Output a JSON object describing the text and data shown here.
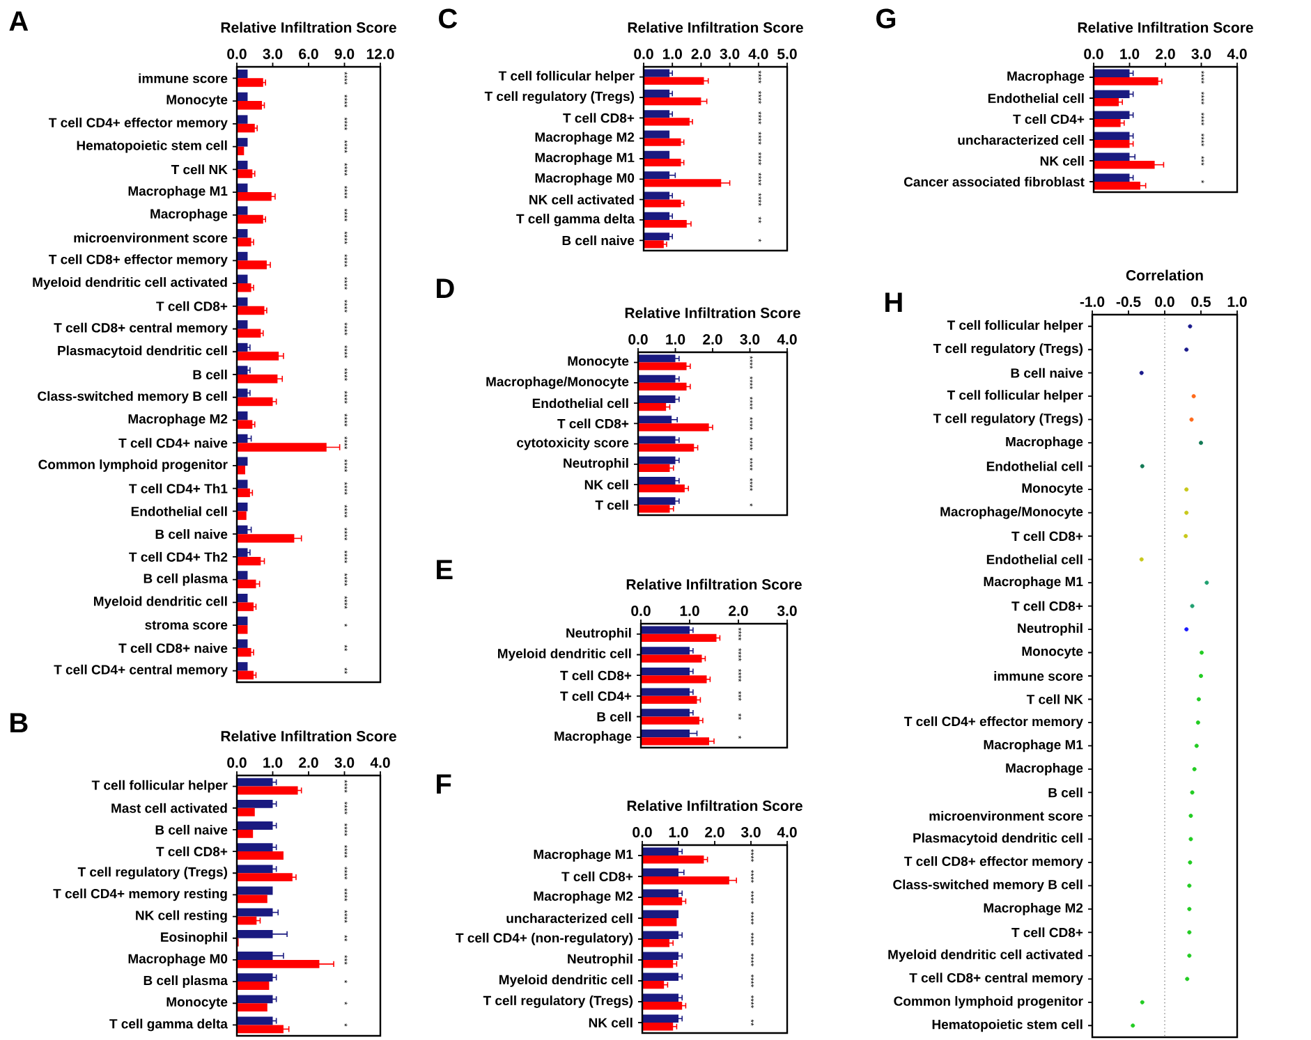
{
  "chart_data": [
    {
      "type": "bar",
      "orientation": "horizontal",
      "title": "Relative Infiltration Score",
      "categories": [
        "immune score",
        "Monocyte",
        "T cell CD4+ effector memory",
        "Hematopoietic stem cell",
        "T cell NK",
        "Macrophage M1",
        "Macrophage",
        "microenvironment score",
        "T cell CD8+ effector memory",
        "Myeloid dendritic cell activated",
        "T cell CD8+",
        "T cell CD8+ central memory",
        "Plasmacytoid dendritic cell",
        "B cell",
        "Class-switched memory B cell",
        "Macrophage M2",
        "T cell CD4+ naive",
        "Common lymphoid progenitor",
        "T cell CD4+ Th1",
        "Endothelial cell",
        "B cell naive",
        "T cell CD4+ Th2",
        "B cell plasma",
        "Myeloid dendritic cell",
        "stroma score",
        "T cell CD8+ naive",
        "T cell CD4+ central memory"
      ],
      "series": [
        {
          "color": "#1a1a80",
          "values": [
            0.9,
            0.9,
            0.9,
            0.9,
            0.9,
            0.9,
            0.9,
            0.9,
            0.9,
            0.9,
            0.9,
            0.9,
            0.9,
            0.9,
            0.9,
            0.9,
            0.9,
            0.9,
            0.9,
            0.9,
            0.9,
            0.9,
            0.9,
            0.9,
            0.9,
            0.9,
            0.9
          ],
          "errors": [
            null,
            null,
            null,
            null,
            null,
            null,
            null,
            null,
            null,
            null,
            null,
            null,
            0.2,
            0.2,
            0.2,
            null,
            0.3,
            null,
            null,
            null,
            0.3,
            0.2,
            null,
            null,
            null,
            null,
            null
          ]
        },
        {
          "color": "#ff0000",
          "values": [
            2.2,
            2.1,
            1.5,
            0.6,
            1.3,
            2.9,
            2.2,
            1.2,
            2.5,
            1.2,
            2.3,
            2.0,
            3.5,
            3.4,
            3.0,
            1.3,
            7.5,
            0.7,
            1.1,
            0.8,
            4.8,
            2.0,
            1.6,
            1.4,
            0.9,
            1.2,
            1.4
          ],
          "errors": [
            0.2,
            0.2,
            0.2,
            null,
            0.2,
            0.3,
            0.2,
            0.2,
            0.3,
            0.2,
            0.2,
            0.2,
            0.4,
            0.4,
            0.3,
            0.2,
            1.1,
            null,
            0.2,
            null,
            0.6,
            0.3,
            0.3,
            0.2,
            null,
            0.2,
            0.2
          ]
        }
      ],
      "xlim": [
        0,
        12
      ],
      "xticks": [
        {
          "value": 0,
          "label": "0.0"
        },
        {
          "value": 3,
          "label": "3.0"
        },
        {
          "value": 6,
          "label": "6.0"
        },
        {
          "value": 9,
          "label": "9.0"
        },
        {
          "value": 12,
          "label": "12.0"
        }
      ],
      "annotations": [
        "A",
        "****",
        "****",
        "****",
        "****",
        "****",
        "****",
        "****",
        "****",
        "****",
        "****",
        "****",
        "****",
        "****",
        "****",
        "****",
        "****",
        "****",
        "****",
        "****",
        "****",
        "****",
        "****",
        "****",
        "****",
        "*",
        "**",
        "**"
      ]
    },
    {
      "type": "bar",
      "orientation": "horizontal",
      "title": "Relative Infiltration Score",
      "categories": [
        "T cell follicular helper",
        "Mast cell activated",
        "B cell naive",
        "T cell CD8+",
        "T cell regulatory (Tregs)",
        "T cell CD4+ memory resting",
        "NK cell resting",
        "Eosinophil",
        "Macrophage M0",
        "B cell plasma",
        "Monocyte",
        "T cell gamma delta"
      ],
      "series": [
        {
          "color": "#1a1a80",
          "values": [
            1.0,
            1.0,
            1.0,
            1.0,
            1.0,
            1.0,
            1.0,
            1.0,
            1.0,
            1.0,
            1.0,
            1.0
          ],
          "errors": [
            0.1,
            0.1,
            0.1,
            0.1,
            0.1,
            null,
            0.15,
            0.4,
            0.3,
            0.1,
            0.1,
            0.1
          ]
        },
        {
          "color": "#ff0000",
          "values": [
            1.7,
            0.5,
            0.45,
            1.3,
            1.55,
            0.85,
            0.55,
            0.05,
            2.3,
            0.9,
            0.85,
            1.3
          ],
          "errors": [
            0.1,
            null,
            null,
            null,
            0.1,
            null,
            0.1,
            null,
            0.4,
            null,
            null,
            0.15
          ]
        }
      ],
      "xlim": [
        0,
        4
      ],
      "xticks": [
        {
          "value": 0,
          "label": "0.0"
        },
        {
          "value": 1,
          "label": "1.0"
        },
        {
          "value": 2,
          "label": "2.0"
        },
        {
          "value": 3,
          "label": "3.0"
        },
        {
          "value": 4,
          "label": "4.0"
        }
      ],
      "annotations": [
        "B",
        "****",
        "****",
        "****",
        "****",
        "****",
        "****",
        "****",
        "**",
        "***",
        "*",
        "*",
        "*"
      ]
    },
    {
      "type": "bar",
      "orientation": "horizontal",
      "title": "Relative Infiltration Score",
      "categories": [
        "T cell follicular helper",
        "T cell regulatory (Tregs)",
        "T cell CD8+",
        "Macrophage M2",
        "Macrophage M1",
        "Macrophage M0",
        "NK cell activated",
        "T cell gamma delta",
        "B cell naive"
      ],
      "series": [
        {
          "color": "#1a1a80",
          "values": [
            0.9,
            0.9,
            0.9,
            0.9,
            0.9,
            0.9,
            0.9,
            0.9,
            0.9
          ],
          "errors": [
            0.1,
            0.1,
            0.1,
            null,
            null,
            0.2,
            0.1,
            0.1,
            0.1
          ]
        },
        {
          "color": "#ff0000",
          "values": [
            2.1,
            2.0,
            1.6,
            1.3,
            1.3,
            2.7,
            1.3,
            1.5,
            0.7
          ],
          "errors": [
            0.15,
            0.2,
            0.1,
            0.1,
            0.1,
            0.3,
            0.1,
            0.15,
            0.1
          ]
        }
      ],
      "xlim": [
        0,
        5
      ],
      "xticks": [
        {
          "value": 0,
          "label": "0.0"
        },
        {
          "value": 1,
          "label": "1.0"
        },
        {
          "value": 2,
          "label": "2.0"
        },
        {
          "value": 3,
          "label": "3.0"
        },
        {
          "value": 4,
          "label": "4.0"
        },
        {
          "value": 5,
          "label": "5.0"
        }
      ],
      "annotations": [
        "C",
        "****",
        "****",
        "****",
        "****",
        "****",
        "****",
        "****",
        "**",
        "*"
      ]
    },
    {
      "type": "bar",
      "orientation": "horizontal",
      "title": "Relative Infiltration Score",
      "categories": [
        "Monocyte",
        "Macrophage/Monocyte",
        "Endothelial cell",
        "T cell CD8+",
        "cytotoxicity score",
        "Neutrophil",
        "NK cell",
        "T cell"
      ],
      "series": [
        {
          "color": "#1a1a80",
          "values": [
            1.0,
            1.0,
            1.0,
            0.9,
            1.0,
            1.0,
            1.0,
            1.0
          ],
          "errors": [
            0.1,
            0.1,
            0.1,
            0.15,
            0.1,
            0.1,
            0.1,
            0.1
          ]
        },
        {
          "color": "#ff0000",
          "values": [
            1.3,
            1.3,
            0.75,
            1.9,
            1.5,
            0.85,
            1.25,
            0.85
          ],
          "errors": [
            0.1,
            0.1,
            0.1,
            0.1,
            0.1,
            0.1,
            0.1,
            0.1
          ]
        }
      ],
      "xlim": [
        0,
        4
      ],
      "xticks": [
        {
          "value": 0,
          "label": "0.0"
        },
        {
          "value": 1,
          "label": "1.0"
        },
        {
          "value": 2,
          "label": "2.0"
        },
        {
          "value": 3,
          "label": "3.0"
        },
        {
          "value": 4,
          "label": "4.0"
        }
      ],
      "annotations": [
        "D",
        "****",
        "****",
        "****",
        "****",
        "****",
        "****",
        "****",
        "*"
      ]
    },
    {
      "type": "bar",
      "orientation": "horizontal",
      "title": "Relative Infiltration Score",
      "categories": [
        "Neutrophil",
        "Myeloid dendritic cell",
        "T cell CD8+",
        "T cell CD4+",
        "B cell",
        "Macrophage"
      ],
      "series": [
        {
          "color": "#1a1a80",
          "values": [
            1.0,
            1.0,
            1.0,
            1.0,
            1.0,
            1.0
          ],
          "errors": [
            0.07,
            0.07,
            0.07,
            0.07,
            0.07,
            0.15
          ]
        },
        {
          "color": "#ff0000",
          "values": [
            1.55,
            1.25,
            1.35,
            1.15,
            1.2,
            1.4
          ],
          "errors": [
            0.07,
            0.07,
            0.07,
            0.07,
            0.07,
            0.1
          ]
        }
      ],
      "xlim": [
        0,
        3
      ],
      "xticks": [
        {
          "value": 0,
          "label": "0.0"
        },
        {
          "value": 1,
          "label": "1.0"
        },
        {
          "value": 2,
          "label": "2.0"
        },
        {
          "value": 3,
          "label": "3.0"
        }
      ],
      "annotations": [
        "E",
        "****",
        "****",
        "****",
        "***",
        "**",
        "*"
      ]
    },
    {
      "type": "bar",
      "orientation": "horizontal",
      "title": "Relative Infiltration Score",
      "categories": [
        "Macrophage M1",
        "T cell CD8+",
        "Macrophage M2",
        "uncharacterized cell",
        "T cell CD4+ (non-regulatory)",
        "Neutrophil",
        "Myeloid dendritic cell",
        "T cell regulatory (Tregs)",
        "NK cell"
      ],
      "series": [
        {
          "color": "#1a1a80",
          "values": [
            1.0,
            1.0,
            1.0,
            1.0,
            1.0,
            1.0,
            1.0,
            1.0,
            1.0
          ],
          "errors": [
            0.1,
            0.15,
            0.1,
            null,
            0.1,
            0.1,
            0.1,
            0.1,
            0.1
          ]
        },
        {
          "color": "#ff0000",
          "values": [
            1.7,
            2.4,
            1.1,
            0.95,
            0.75,
            0.85,
            0.6,
            1.1,
            0.85
          ],
          "errors": [
            0.1,
            0.2,
            0.1,
            null,
            0.1,
            0.1,
            0.1,
            0.1,
            0.1
          ]
        }
      ],
      "xlim": [
        0,
        4
      ],
      "xticks": [
        {
          "value": 0,
          "label": "0.0"
        },
        {
          "value": 1,
          "label": "1.0"
        },
        {
          "value": 2,
          "label": "2.0"
        },
        {
          "value": 3,
          "label": "3.0"
        },
        {
          "value": 4,
          "label": "4.0"
        }
      ],
      "annotations": [
        "F",
        "****",
        "****",
        "****",
        "****",
        "****",
        "****",
        "****",
        "****",
        "**"
      ]
    },
    {
      "type": "bar",
      "orientation": "horizontal",
      "title": "Relative Infiltration Score",
      "categories": [
        "Macrophage",
        "Endothelial cell",
        "T cell CD4+",
        "uncharacterized cell",
        "NK cell",
        "Cancer associated fibroblast"
      ],
      "series": [
        {
          "color": "#1a1a80",
          "values": [
            1.0,
            1.0,
            1.0,
            1.0,
            1.0,
            1.0
          ],
          "errors": [
            0.1,
            0.1,
            0.1,
            0.1,
            0.15,
            0.1
          ]
        },
        {
          "color": "#ff0000",
          "values": [
            1.8,
            0.7,
            0.75,
            1.0,
            1.7,
            1.3
          ],
          "errors": [
            0.1,
            0.1,
            0.1,
            0.1,
            0.25,
            0.15
          ]
        }
      ],
      "xlim": [
        0,
        4
      ],
      "xticks": [
        {
          "value": 0,
          "label": "0.0"
        },
        {
          "value": 1,
          "label": "1.0"
        },
        {
          "value": 2,
          "label": "2.0"
        },
        {
          "value": 3,
          "label": "3.0"
        },
        {
          "value": 4,
          "label": "4.0"
        }
      ],
      "annotations": [
        "G",
        "****",
        "****",
        "****",
        "****",
        "***",
        "*"
      ]
    },
    {
      "type": "scatter",
      "orientation": "horizontal",
      "title": "Correlation",
      "marker": "circle",
      "categories": [
        "T cell follicular helper",
        "T cell regulatory (Tregs)",
        "B cell naive",
        "T cell follicular helper",
        "T cell regulatory (Tregs)",
        "Macrophage",
        "Endothelial cell",
        "Monocyte",
        "Macrophage/Monocyte",
        "T cell CD8+",
        "Endothelial cell",
        "Macrophage M1",
        "T cell CD8+",
        "Neutrophil",
        "Monocyte",
        "immune score",
        "T cell NK",
        "T cell CD4+ effector memory",
        "Macrophage M1",
        "Macrophage",
        "B cell",
        "microenvironment score",
        "Plasmacytoid dendritic cell",
        "T cell CD8+ effector memory",
        "Class-switched memory B cell",
        "Macrophage M2",
        "T cell CD8+",
        "Myeloid dendritic cell activated",
        "T cell CD8+ central memory",
        "Common lymphoid progenitor",
        "Hematopoietic stem cell"
      ],
      "values": [
        0.35,
        0.3,
        -0.32,
        0.4,
        0.37,
        0.5,
        -0.31,
        0.3,
        0.3,
        0.29,
        -0.32,
        0.58,
        0.38,
        0.3,
        0.51,
        0.5,
        0.47,
        0.46,
        0.44,
        0.41,
        0.38,
        0.36,
        0.36,
        0.35,
        0.34,
        0.34,
        0.34,
        0.34,
        0.31,
        -0.31,
        -0.44
      ],
      "colors": [
        "#1a1a8c",
        "#1a1a8c",
        "#1a1a8c",
        "#ff6a1a",
        "#ff6a1a",
        "#137a55",
        "#137a55",
        "#c8c81a",
        "#c8c81a",
        "#c8c81a",
        "#c8c81a",
        "#20a070",
        "#20a070",
        "#1a1aff",
        "#22cc22",
        "#22cc22",
        "#22cc22",
        "#22cc22",
        "#22cc22",
        "#22cc22",
        "#22cc22",
        "#22cc22",
        "#22cc22",
        "#22cc22",
        "#22cc22",
        "#22cc22",
        "#22cc22",
        "#22cc22",
        "#22cc22",
        "#22cc22",
        "#22cc22"
      ],
      "xlim": [
        -1,
        1
      ],
      "xticks": [
        {
          "value": -1,
          "label": "-1.0"
        },
        {
          "value": -0.5,
          "label": "-0.5"
        },
        {
          "value": 0,
          "label": "0.0"
        },
        {
          "value": 0.5,
          "label": "0.5"
        },
        {
          "value": 1,
          "label": "1.0"
        }
      ],
      "ref_lines": [
        {
          "axis": "x",
          "value": 0,
          "line_style": "dotted"
        }
      ],
      "annotations": [
        "H"
      ]
    }
  ]
}
